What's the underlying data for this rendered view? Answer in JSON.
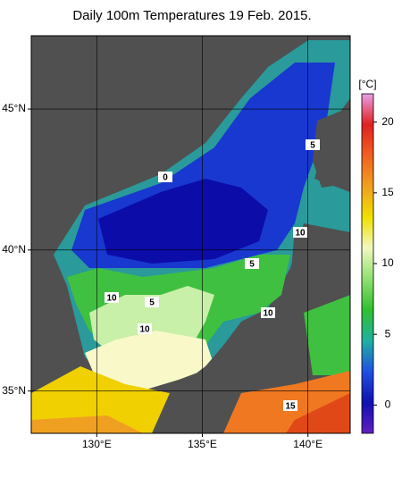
{
  "title": "Daily 100m Temperatures 19 Feb. 2015.",
  "map": {
    "lon_lim": [
      126.9,
      142
    ],
    "lat_lim": [
      33.5,
      47.6
    ],
    "lon_ticks": [
      {
        "value": 130,
        "label": "130°E"
      },
      {
        "value": 135,
        "label": "135°E"
      },
      {
        "value": 140,
        "label": "140°E"
      }
    ],
    "lat_ticks": [
      {
        "value": 35,
        "label": "35°N"
      },
      {
        "value": 40,
        "label": "40°N"
      },
      {
        "value": 45,
        "label": "45°N"
      }
    ],
    "grid": true,
    "contour_labels": [
      "5",
      "10",
      "5",
      "10",
      "5",
      "10",
      "10",
      "15",
      "0"
    ],
    "colorbar": {
      "label": "[°C]",
      "lim": [
        -2,
        22
      ],
      "ticks": [
        0,
        5,
        10,
        15,
        20
      ],
      "colors": [
        "#e8a0e8",
        "#e02020",
        "#f06020",
        "#f0a020",
        "#f0e000",
        "#f0f8c0",
        "#90e070",
        "#30c030",
        "#20b0a0",
        "#2050e0",
        "#1010b0",
        "#6020c0"
      ]
    }
  }
}
